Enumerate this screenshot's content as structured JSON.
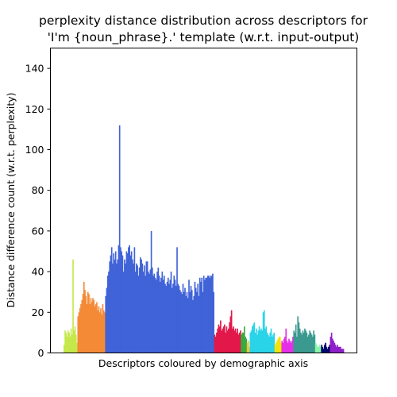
{
  "chart_data": {
    "type": "bar",
    "title_lines": [
      "perplexity distance distribution across descriptors for",
      "'I'm {noun_phrase}.' template (w.r.t. input-output)"
    ],
    "xlabel": "Descriptors coloured by demographic axis",
    "ylabel": "Distance difference count (w.r.t. perplexity)",
    "ylim": [
      0,
      150
    ],
    "yticks": [
      "0",
      "20",
      "40",
      "60",
      "80",
      "100",
      "120",
      "140"
    ],
    "grid": false,
    "legend": "none",
    "series": [
      {
        "color": "#c5e84a",
        "values": [
          4,
          11,
          10,
          8,
          11,
          10,
          8,
          12,
          9,
          46,
          11,
          13,
          9,
          5
        ]
      },
      {
        "color": "#f58a36",
        "values": [
          18,
          20,
          22,
          24,
          26,
          29,
          35,
          31,
          28,
          24,
          30,
          29,
          24,
          27,
          25,
          27,
          26,
          23,
          24,
          25,
          21,
          23,
          20,
          22,
          19,
          24,
          21,
          20
        ]
      },
      {
        "color": "#4063d8",
        "values": [
          28,
          32,
          38,
          40,
          45,
          48,
          52,
          44,
          49,
          46,
          50,
          44,
          46,
          53,
          112,
          52,
          50,
          48,
          40,
          46,
          44,
          50,
          49,
          52,
          53,
          48,
          50,
          46,
          44,
          52,
          40,
          44,
          43,
          38,
          42,
          47,
          46,
          44,
          40,
          43,
          38,
          45,
          45,
          40,
          39,
          41,
          60,
          42,
          38,
          39,
          37,
          36,
          40,
          42,
          38,
          35,
          37,
          40,
          36,
          38,
          34,
          33,
          35,
          37,
          34,
          36,
          40,
          32,
          34,
          38,
          36,
          33,
          52,
          34,
          33,
          31,
          30,
          29,
          34,
          30,
          32,
          28,
          30,
          27,
          36,
          30,
          33,
          31,
          26,
          28,
          35,
          32,
          30,
          34,
          28,
          37,
          35,
          37,
          30,
          38,
          36,
          37,
          37,
          38,
          38,
          37,
          38,
          38,
          39,
          30
        ]
      },
      {
        "color": "#e3184a",
        "values": [
          9,
          8,
          10,
          12,
          14,
          13,
          16,
          11,
          12,
          13,
          14,
          10,
          13,
          11,
          12,
          15,
          18,
          21,
          12,
          13,
          11,
          12,
          10,
          12,
          9,
          10,
          11
        ]
      },
      {
        "color": "#3aaa3f",
        "values": [
          9,
          10,
          10,
          13,
          8,
          7
        ]
      },
      {
        "color": "#e8c83c",
        "values": [
          5,
          6,
          3
        ]
      },
      {
        "color": "#2bd4e8",
        "values": [
          10,
          11,
          13,
          14,
          15,
          10,
          12,
          9,
          11,
          13,
          11,
          12,
          11,
          20,
          21,
          12,
          13,
          10,
          9,
          8,
          10,
          12,
          8,
          9,
          10
        ]
      },
      {
        "color": "#f0e40a",
        "values": [
          4,
          5,
          6,
          7,
          8,
          8,
          5
        ]
      },
      {
        "color": "#e530e8",
        "values": [
          6,
          5,
          7,
          8,
          12,
          6,
          5,
          7,
          6,
          5,
          6,
          8
        ]
      },
      {
        "color": "#3b9a90",
        "values": [
          11,
          10,
          14,
          8,
          18,
          15,
          12,
          10,
          9,
          11,
          10,
          12,
          11,
          10,
          8,
          9,
          11,
          10,
          9,
          8,
          11,
          9
        ]
      },
      {
        "color": "#8df5a8",
        "values": [
          5,
          4,
          3,
          3,
          4,
          3
        ]
      },
      {
        "color": "#05066b",
        "values": [
          4,
          3,
          2,
          4,
          5,
          3,
          2,
          3,
          4
        ]
      },
      {
        "color": "#8e20c8",
        "values": [
          8,
          10,
          7,
          6,
          5,
          4,
          3,
          4,
          3,
          3,
          3,
          2,
          2,
          2
        ]
      }
    ]
  }
}
